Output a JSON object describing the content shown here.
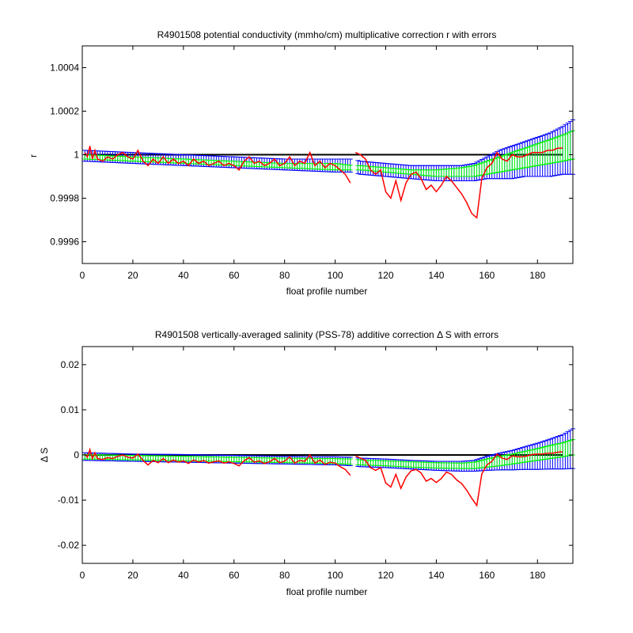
{
  "chart_data": [
    {
      "type": "line",
      "title": "R4901508 potential conductivity (mmho/cm) multiplicative correction r with errors",
      "xlabel": "float profile number",
      "ylabel": "r",
      "xlim": [
        0,
        194
      ],
      "ylim": [
        0.9995,
        1.0005
      ],
      "xticks": [
        0,
        20,
        40,
        60,
        80,
        100,
        120,
        140,
        160,
        180
      ],
      "yticks": [
        0.9996,
        0.9998,
        1,
        1.0002,
        1.0004
      ],
      "ytick_labels": [
        "0.9996",
        "0.9998",
        "1",
        "1.0002",
        "1.0004"
      ],
      "reference_line": 1,
      "colors": {
        "reference": "#000000",
        "outer_error": "#0000ff",
        "inner_error": "#00ff00",
        "estimate": "#ff0000"
      },
      "series": [
        {
          "role": "outer_error_band",
          "x": [
            1,
            20,
            40,
            60,
            80,
            100,
            107,
            110,
            120,
            130,
            140,
            150,
            155,
            160,
            165,
            170,
            175,
            180,
            185,
            190,
            194
          ],
          "lower": [
            0.99997,
            0.99996,
            0.99995,
            0.99994,
            0.99993,
            0.99992,
            0.99992,
            0.99991,
            0.9999,
            0.99989,
            0.99988,
            0.99988,
            0.99988,
            0.99989,
            0.99989,
            0.99989,
            0.9999,
            0.9999,
            0.9999,
            0.99991,
            0.99991
          ],
          "upper": [
            1.00002,
            1.00001,
            1.0,
            0.99999,
            0.99998,
            0.99998,
            0.99998,
            0.99997,
            0.99996,
            0.99995,
            0.99995,
            0.99995,
            0.99996,
            0.99999,
            1.00002,
            1.00004,
            1.00006,
            1.00008,
            1.0001,
            1.00013,
            1.00016
          ]
        },
        {
          "role": "inner_error_band",
          "x": [
            1,
            20,
            40,
            60,
            80,
            100,
            107,
            110,
            120,
            130,
            140,
            150,
            155,
            160,
            165,
            170,
            175,
            180,
            185,
            190,
            194
          ],
          "lower": [
            0.99998,
            0.99997,
            0.99996,
            0.99995,
            0.99994,
            0.99993,
            0.99993,
            0.99993,
            0.99992,
            0.99991,
            0.9999,
            0.9999,
            0.9999,
            0.99991,
            0.99992,
            0.99993,
            0.99994,
            0.99995,
            0.99996,
            0.99997,
            0.99998
          ],
          "upper": [
            1.0,
            0.99999,
            0.99998,
            0.99997,
            0.99996,
            0.99996,
            0.99995,
            0.99995,
            0.99994,
            0.99993,
            0.99993,
            0.99994,
            0.99995,
            0.99997,
            0.99999,
            1.00001,
            1.00003,
            1.00005,
            1.00007,
            1.00009,
            1.00011
          ]
        },
        {
          "role": "estimate",
          "x": [
            1,
            2,
            3,
            4,
            5,
            6,
            8,
            10,
            12,
            14,
            16,
            18,
            20,
            22,
            24,
            26,
            28,
            30,
            32,
            34,
            36,
            38,
            40,
            42,
            44,
            46,
            48,
            50,
            52,
            54,
            56,
            58,
            60,
            62,
            64,
            66,
            68,
            70,
            72,
            74,
            76,
            78,
            80,
            82,
            84,
            86,
            88,
            90,
            92,
            94,
            96,
            98,
            100,
            102,
            104,
            106,
            108,
            110,
            112,
            114,
            116,
            118,
            120,
            122,
            124,
            126,
            128,
            130,
            132,
            134,
            136,
            138,
            140,
            142,
            144,
            146,
            148,
            150,
            152,
            154,
            156,
            158,
            160,
            162,
            164,
            166,
            168,
            170,
            172,
            174,
            176,
            178,
            180,
            182,
            184,
            186,
            188,
            190
          ],
          "values": [
            1.00001,
            0.99999,
            1.00004,
            0.99998,
            1.00002,
            0.99998,
            0.99997,
            0.99999,
            0.99998,
            1.0,
            1.00001,
            0.99999,
            0.99998,
            1.00002,
            0.99997,
            0.99995,
            0.99998,
            0.99996,
            0.99999,
            0.99996,
            0.99998,
            0.99996,
            0.99997,
            0.99995,
            0.99998,
            0.99996,
            0.99997,
            0.99995,
            0.99996,
            0.99997,
            0.99995,
            0.99996,
            0.99995,
            0.99993,
            0.99997,
            0.99999,
            0.99996,
            0.99997,
            0.99995,
            0.99996,
            0.99998,
            0.99995,
            0.99996,
            0.99999,
            0.99995,
            0.99997,
            0.99996,
            1.00001,
            0.99995,
            0.99997,
            0.99994,
            0.99996,
            0.99995,
            0.99993,
            0.99991,
            0.99987,
            1.00001,
            1.0,
            0.99998,
            0.99993,
            0.99991,
            0.99993,
            0.99983,
            0.9998,
            0.99988,
            0.99979,
            0.99987,
            0.99991,
            0.99992,
            0.99989,
            0.99984,
            0.99986,
            0.99983,
            0.99986,
            0.9999,
            0.99988,
            0.99985,
            0.99982,
            0.99978,
            0.99973,
            0.99971,
            0.99989,
            0.99994,
            0.99996,
            1.00001,
            0.99998,
            0.99997,
            1.0,
            0.99999,
            0.99999,
            1.0,
            1.00001,
            1.00001,
            1.00001,
            1.00002,
            1.00002,
            1.00003,
            1.00003
          ]
        }
      ]
    },
    {
      "type": "line",
      "title": "R4901508 vertically-averaged salinity (PSS-78) additive correction Δ S with errors",
      "xlabel": "float profile number",
      "ylabel": "Δ S",
      "xlim": [
        0,
        194
      ],
      "ylim": [
        -0.024,
        0.024
      ],
      "xticks": [
        0,
        20,
        40,
        60,
        80,
        100,
        120,
        140,
        160,
        180
      ],
      "yticks": [
        -0.02,
        -0.01,
        0,
        0.01,
        0.02
      ],
      "ytick_labels": [
        "-0.02",
        "-0.01",
        "0",
        "0.01",
        "0.02"
      ],
      "reference_line": 0,
      "colors": {
        "reference": "#000000",
        "outer_error": "#0000ff",
        "inner_error": "#00ff00",
        "estimate": "#ff0000"
      },
      "series": [
        {
          "role": "outer_error_band",
          "x": [
            1,
            20,
            40,
            60,
            80,
            100,
            107,
            110,
            120,
            130,
            140,
            150,
            155,
            160,
            165,
            170,
            175,
            180,
            185,
            190,
            194
          ],
          "lower": [
            -0.0012,
            -0.0014,
            -0.0016,
            -0.0018,
            -0.002,
            -0.0022,
            -0.0024,
            -0.0026,
            -0.0028,
            -0.0031,
            -0.0034,
            -0.0036,
            -0.0036,
            -0.0034,
            -0.0033,
            -0.0033,
            -0.0032,
            -0.0032,
            -0.0031,
            -0.0031,
            -0.003
          ],
          "upper": [
            0.0005,
            0.0002,
            0.0001,
            -0.0001,
            -0.0003,
            -0.0004,
            -0.0005,
            -0.0007,
            -0.0009,
            -0.0012,
            -0.0014,
            -0.0014,
            -0.0012,
            -0.0003,
            0.0004,
            0.001,
            0.0018,
            0.0026,
            0.0035,
            0.0045,
            0.0058
          ]
        },
        {
          "role": "inner_error_band",
          "x": [
            1,
            20,
            40,
            60,
            80,
            100,
            107,
            110,
            120,
            130,
            140,
            150,
            155,
            160,
            165,
            170,
            175,
            180,
            185,
            190,
            194
          ],
          "lower": [
            -0.0009,
            -0.0011,
            -0.0013,
            -0.0015,
            -0.0017,
            -0.0019,
            -0.0021,
            -0.0022,
            -0.0024,
            -0.0027,
            -0.0029,
            -0.003,
            -0.003,
            -0.0027,
            -0.0024,
            -0.002,
            -0.0016,
            -0.0012,
            -0.0008,
            -0.0004,
            0.0
          ],
          "upper": [
            0.0001,
            -0.0001,
            -0.0003,
            -0.0005,
            -0.0007,
            -0.0008,
            -0.0009,
            -0.0011,
            -0.0013,
            -0.0015,
            -0.0017,
            -0.0018,
            -0.0016,
            -0.0009,
            -0.0003,
            0.0002,
            0.0008,
            0.0014,
            0.0021,
            0.0027,
            0.0034
          ]
        },
        {
          "role": "estimate",
          "x": [
            1,
            2,
            3,
            4,
            5,
            6,
            8,
            10,
            12,
            14,
            16,
            18,
            20,
            22,
            24,
            26,
            28,
            30,
            32,
            34,
            36,
            38,
            40,
            42,
            44,
            46,
            48,
            50,
            52,
            54,
            56,
            58,
            60,
            62,
            64,
            66,
            68,
            70,
            72,
            74,
            76,
            78,
            80,
            82,
            84,
            86,
            88,
            90,
            92,
            94,
            96,
            98,
            100,
            102,
            104,
            106,
            108,
            110,
            112,
            114,
            116,
            118,
            120,
            122,
            124,
            126,
            128,
            130,
            132,
            134,
            136,
            138,
            140,
            142,
            144,
            146,
            148,
            150,
            152,
            154,
            156,
            158,
            160,
            162,
            164,
            166,
            168,
            170,
            172,
            174,
            176,
            178,
            180,
            182,
            184,
            186,
            188,
            190
          ],
          "values": [
            0.0002,
            -0.0005,
            0.0012,
            -0.0008,
            0.0005,
            -0.0008,
            -0.001,
            -0.0006,
            -0.0008,
            -0.0003,
            0.0,
            -0.0005,
            -0.0007,
            0.0002,
            -0.0012,
            -0.0022,
            -0.0012,
            -0.0017,
            -0.0008,
            -0.0017,
            -0.0011,
            -0.0016,
            -0.0013,
            -0.0019,
            -0.0011,
            -0.0016,
            -0.0012,
            -0.0018,
            -0.0015,
            -0.0013,
            -0.0018,
            -0.0015,
            -0.0019,
            -0.0024,
            -0.0013,
            -0.0006,
            -0.0016,
            -0.0013,
            -0.0019,
            -0.0015,
            -0.0008,
            -0.0017,
            -0.0014,
            -0.0004,
            -0.0018,
            -0.0012,
            -0.0014,
            0.0,
            -0.0018,
            -0.0011,
            -0.0021,
            -0.0016,
            -0.0018,
            -0.0026,
            -0.0032,
            -0.0045,
            -0.0002,
            -0.0007,
            -0.0012,
            -0.0028,
            -0.0034,
            -0.0028,
            -0.0062,
            -0.0071,
            -0.0043,
            -0.0074,
            -0.0049,
            -0.0035,
            -0.0032,
            -0.004,
            -0.0058,
            -0.0052,
            -0.0061,
            -0.0052,
            -0.0038,
            -0.0043,
            -0.0055,
            -0.0063,
            -0.0078,
            -0.0096,
            -0.0112,
            -0.0042,
            -0.0022,
            -0.0014,
            0.0002,
            -0.0007,
            -0.001,
            -0.0002,
            -0.0004,
            -0.0004,
            -0.0002,
            0.0001,
            0.0002,
            0.0002,
            0.0004,
            0.0004,
            0.0006,
            0.0007
          ]
        }
      ]
    }
  ]
}
